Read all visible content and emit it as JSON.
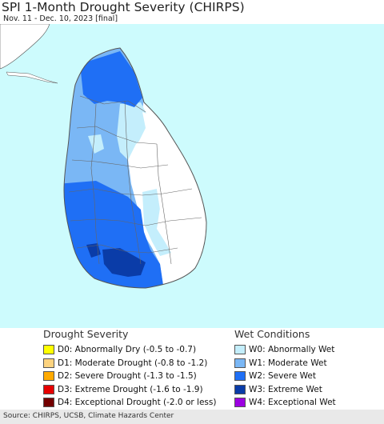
{
  "title": "SPI 1-Month Drought Severity (CHIRPS)",
  "subtitle": "Nov. 11 - Dec. 10, 2023 [final]",
  "source": "Source: CHIRPS, UCSB, Climate Hazards Center",
  "legend": {
    "drought_title": "Drought Severity",
    "wet_title": "Wet Conditions",
    "drought": [
      {
        "label": "D0: Abnormally Dry (-0.5 to -0.7)",
        "color": "#ffff00"
      },
      {
        "label": "D1: Moderate Drought (-0.8 to -1.2)",
        "color": "#fcd37f"
      },
      {
        "label": "D2: Severe Drought (-1.3 to -1.5)",
        "color": "#ffaa00"
      },
      {
        "label": "D3: Extreme Drought (-1.6 to -1.9)",
        "color": "#e60000"
      },
      {
        "label": "D4: Exceptional Drought (-2.0 or less)",
        "color": "#730000"
      }
    ],
    "wet": [
      {
        "label": "W0: Abnormally Wet",
        "color": "#c4eefc"
      },
      {
        "label": "W1: Moderate Wet",
        "color": "#7ab7f5"
      },
      {
        "label": "W2: Severe Wet",
        "color": "#1f6ff5"
      },
      {
        "label": "W3: Extreme Wet",
        "color": "#0a3ca8"
      },
      {
        "label": "W4: Exceptional Wet",
        "color": "#9b00e0"
      }
    ]
  },
  "colors": {
    "ocean": "#cdfbfd",
    "land_outside": "#ffffff",
    "no_anomaly": "#ffffff",
    "boundary": "#555555"
  }
}
